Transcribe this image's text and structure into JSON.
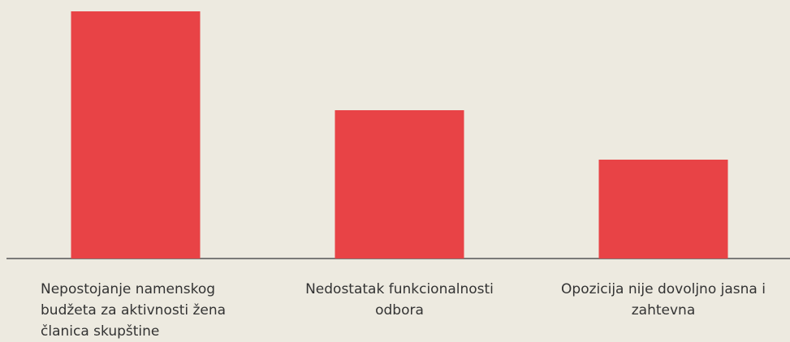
{
  "chart_data": {
    "type": "bar",
    "categories": [
      "Nepostojanje namenskog budžeta za aktivnosti žena članica skupštine",
      "Nedostatak funkcionalnosti odbora",
      "Opozicija nije dovoljno jasna i zahtevna"
    ],
    "values": [
      50,
      30,
      20
    ],
    "color": "#e84346",
    "ylim": [
      0,
      50
    ]
  }
}
